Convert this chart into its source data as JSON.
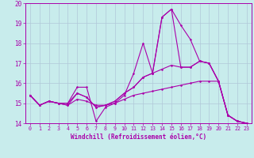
{
  "xlabel": "Windchill (Refroidissement éolien,°C)",
  "xlim": [
    -0.5,
    23.5
  ],
  "ylim": [
    14,
    20
  ],
  "yticks": [
    14,
    15,
    16,
    17,
    18,
    19,
    20
  ],
  "xticks": [
    0,
    1,
    2,
    3,
    4,
    5,
    6,
    7,
    8,
    9,
    10,
    11,
    12,
    13,
    14,
    15,
    16,
    17,
    18,
    19,
    20,
    21,
    22,
    23
  ],
  "bg_color": "#c8ecec",
  "grid_color": "#b0c8d8",
  "line_color": "#aa00aa",
  "lines": [
    [
      15.4,
      14.9,
      15.1,
      15.0,
      15.0,
      15.8,
      15.8,
      14.1,
      14.8,
      15.0,
      15.4,
      16.5,
      18.0,
      16.5,
      19.3,
      19.7,
      18.9,
      18.2,
      17.1,
      17.0,
      16.1,
      14.4,
      14.1,
      14.0
    ],
    [
      15.4,
      14.9,
      15.1,
      15.0,
      15.0,
      15.5,
      15.3,
      14.8,
      14.9,
      15.1,
      15.5,
      15.8,
      16.3,
      16.5,
      19.3,
      19.7,
      16.8,
      16.8,
      17.1,
      17.0,
      16.1,
      14.4,
      14.1,
      14.0
    ],
    [
      15.4,
      14.9,
      15.1,
      15.0,
      14.9,
      15.5,
      15.3,
      14.8,
      14.9,
      15.1,
      15.5,
      15.8,
      16.3,
      16.5,
      16.7,
      16.9,
      16.8,
      16.8,
      17.1,
      17.0,
      16.1,
      14.4,
      14.1,
      14.0
    ],
    [
      15.4,
      14.9,
      15.1,
      15.0,
      14.9,
      15.2,
      15.1,
      14.9,
      14.9,
      15.0,
      15.2,
      15.4,
      15.5,
      15.6,
      15.7,
      15.8,
      15.9,
      16.0,
      16.1,
      16.1,
      16.1,
      14.4,
      14.1,
      14.0
    ]
  ],
  "xlabel_fontsize": 5.5,
  "xtick_fontsize": 4.8,
  "ytick_fontsize": 5.5,
  "linewidth": 0.8,
  "markersize": 2.5
}
